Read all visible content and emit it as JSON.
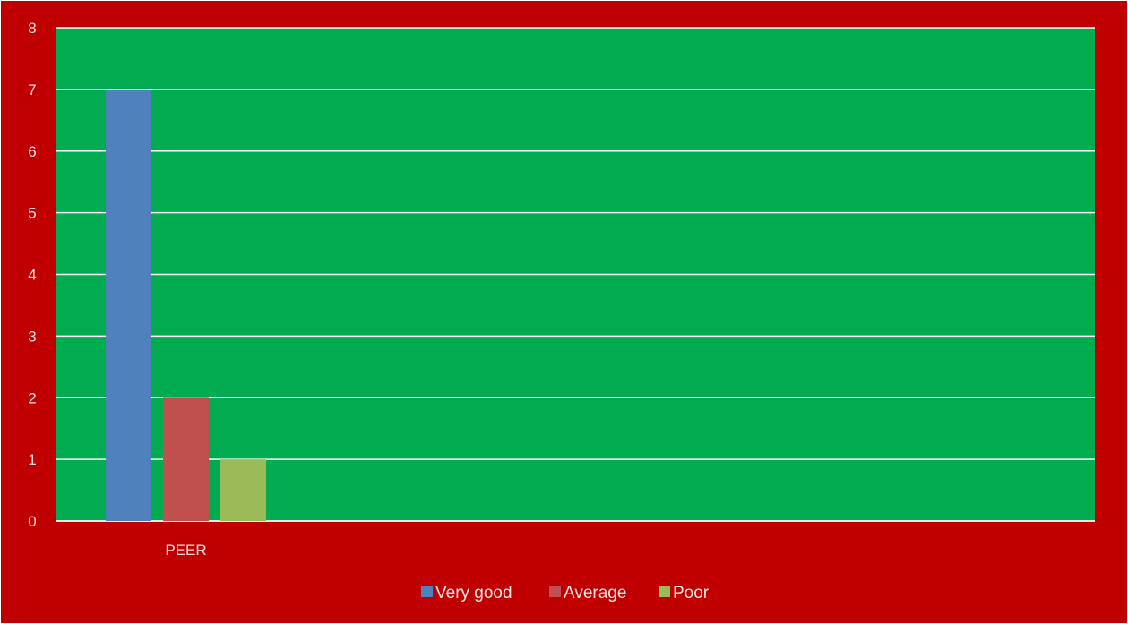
{
  "chart_data": {
    "type": "bar",
    "categories": [
      "PEER"
    ],
    "series": [
      {
        "name": "Very good",
        "values": [
          7
        ],
        "color": "#4f81bd"
      },
      {
        "name": "Average",
        "values": [
          2
        ],
        "color": "#c0504d"
      },
      {
        "name": "Poor",
        "values": [
          1
        ],
        "color": "#9bbb59"
      }
    ],
    "title": "",
    "xlabel": "",
    "ylabel": "",
    "ylim": [
      0,
      8
    ],
    "yticks": [
      0,
      1,
      2,
      3,
      4,
      5,
      6,
      7,
      8
    ],
    "grid": true,
    "legend_position": "bottom",
    "colors": {
      "chart_background": "#c00000",
      "plot_background": "#00ac4f",
      "gridline": "#ffffff"
    }
  }
}
